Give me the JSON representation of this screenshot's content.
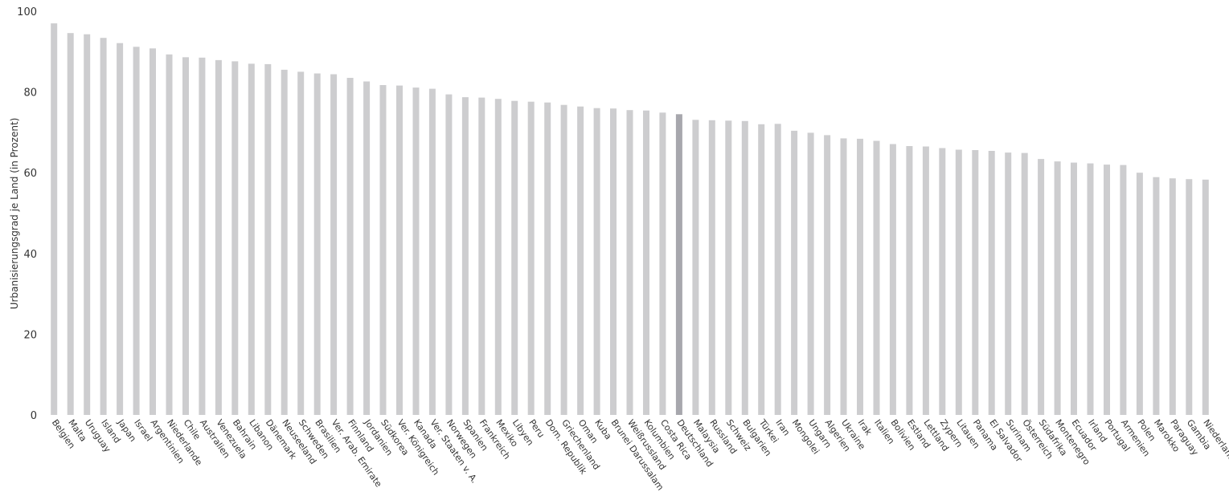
{
  "chart_data": {
    "type": "bar",
    "title": "",
    "xlabel": "",
    "ylabel": "Urbanisierungsgrad je Land (in Prozent)",
    "ylim": [
      0,
      100
    ],
    "yticks": [
      0,
      20,
      40,
      60,
      80,
      100
    ],
    "grid": false,
    "bar_color": "#cdcdcf",
    "highlight_color": "#a7a7ad",
    "highlight_category": "Deutschland",
    "categories": [
      "Belgien",
      "Malta",
      "Uruguay",
      "Island",
      "Japan",
      "Israel",
      "Argentinien",
      "Niederlande",
      "Chile",
      "Australien",
      "Venezuela",
      "Bahrain",
      "Libanon",
      "Dänemark",
      "Neuseeland",
      "Schweden",
      "Brasilien",
      "Ver. Arab. Emirate",
      "Finnland",
      "Jordanien",
      "Südkorea",
      "Ver. Königreich",
      "Kanada",
      "Ver. Staaten v. A.",
      "Norwegen",
      "Spanien",
      "Frankreich",
      "Mexiko",
      "Libyen",
      "Peru",
      "Dom. Republik",
      "Griechenland",
      "Oman",
      "Kuba",
      "Brunei Darussalam",
      "Weißrussland",
      "Kolumbien",
      "Costa Rica",
      "Deutschland",
      "Malaysia",
      "Russland",
      "Schweiz",
      "Bulgarien",
      "Türkei",
      "Iran",
      "Mongolei",
      "Ungarn",
      "Algerien",
      "Ukraine",
      "Irak",
      "Italien",
      "Bolivien",
      "Estland",
      "Lettland",
      "Zypern",
      "Litauen",
      "Panama",
      "El Salvador",
      "Surinam",
      "Österreich",
      "Südafrika",
      "Montenegro",
      "Ecuador",
      "Irland",
      "Portugal",
      "Armenien",
      "Polen",
      "Marokko",
      "Paraguay",
      "Gambia",
      "Niederlande A."
    ],
    "values": [
      97.0,
      94.6,
      94.3,
      93.4,
      92.1,
      91.2,
      90.8,
      89.3,
      88.6,
      88.5,
      87.9,
      87.6,
      87.0,
      86.9,
      85.5,
      85.0,
      84.6,
      84.4,
      83.5,
      82.6,
      81.7,
      81.6,
      81.1,
      80.8,
      79.4,
      78.7,
      78.6,
      78.3,
      77.8,
      77.6,
      77.4,
      76.8,
      76.4,
      76.0,
      75.9,
      75.5,
      75.4,
      74.9,
      74.5,
      73.1,
      73.0,
      72.9,
      72.8,
      72.0,
      72.1,
      70.4,
      69.9,
      69.3,
      68.5,
      68.4,
      67.9,
      67.1,
      66.6,
      66.5,
      66.1,
      65.7,
      65.6,
      65.4,
      65.0,
      64.9,
      63.4,
      62.8,
      62.5,
      62.3,
      62.0,
      61.9,
      60.0,
      58.9,
      58.6,
      58.4,
      58.3
    ]
  }
}
